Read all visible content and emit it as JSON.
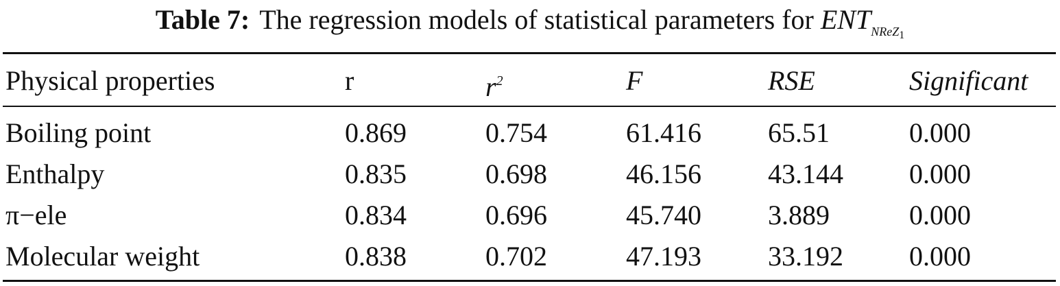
{
  "caption": {
    "label": "Table 7:",
    "text": "The regression models of statistical parameters for",
    "symbol": "ENT",
    "subscript": "NReZ",
    "subsubscript": "1"
  },
  "table": {
    "header": [
      "Physical properties",
      "r",
      {
        "base": "r",
        "sup": "2"
      },
      "F",
      "RSE",
      "Significant"
    ],
    "rows": [
      [
        "Boiling point",
        "0.869",
        "0.754",
        "61.416",
        "65.51",
        "0.000"
      ],
      [
        "Enthalpy",
        "0.835",
        "0.698",
        "46.156",
        "43.144",
        "0.000"
      ],
      [
        "π−ele",
        "0.834",
        "0.696",
        "45.740",
        "3.889",
        "0.000"
      ],
      [
        "Molecular weight",
        "0.838",
        "0.702",
        "47.193",
        "33.192",
        "0.000"
      ]
    ]
  }
}
